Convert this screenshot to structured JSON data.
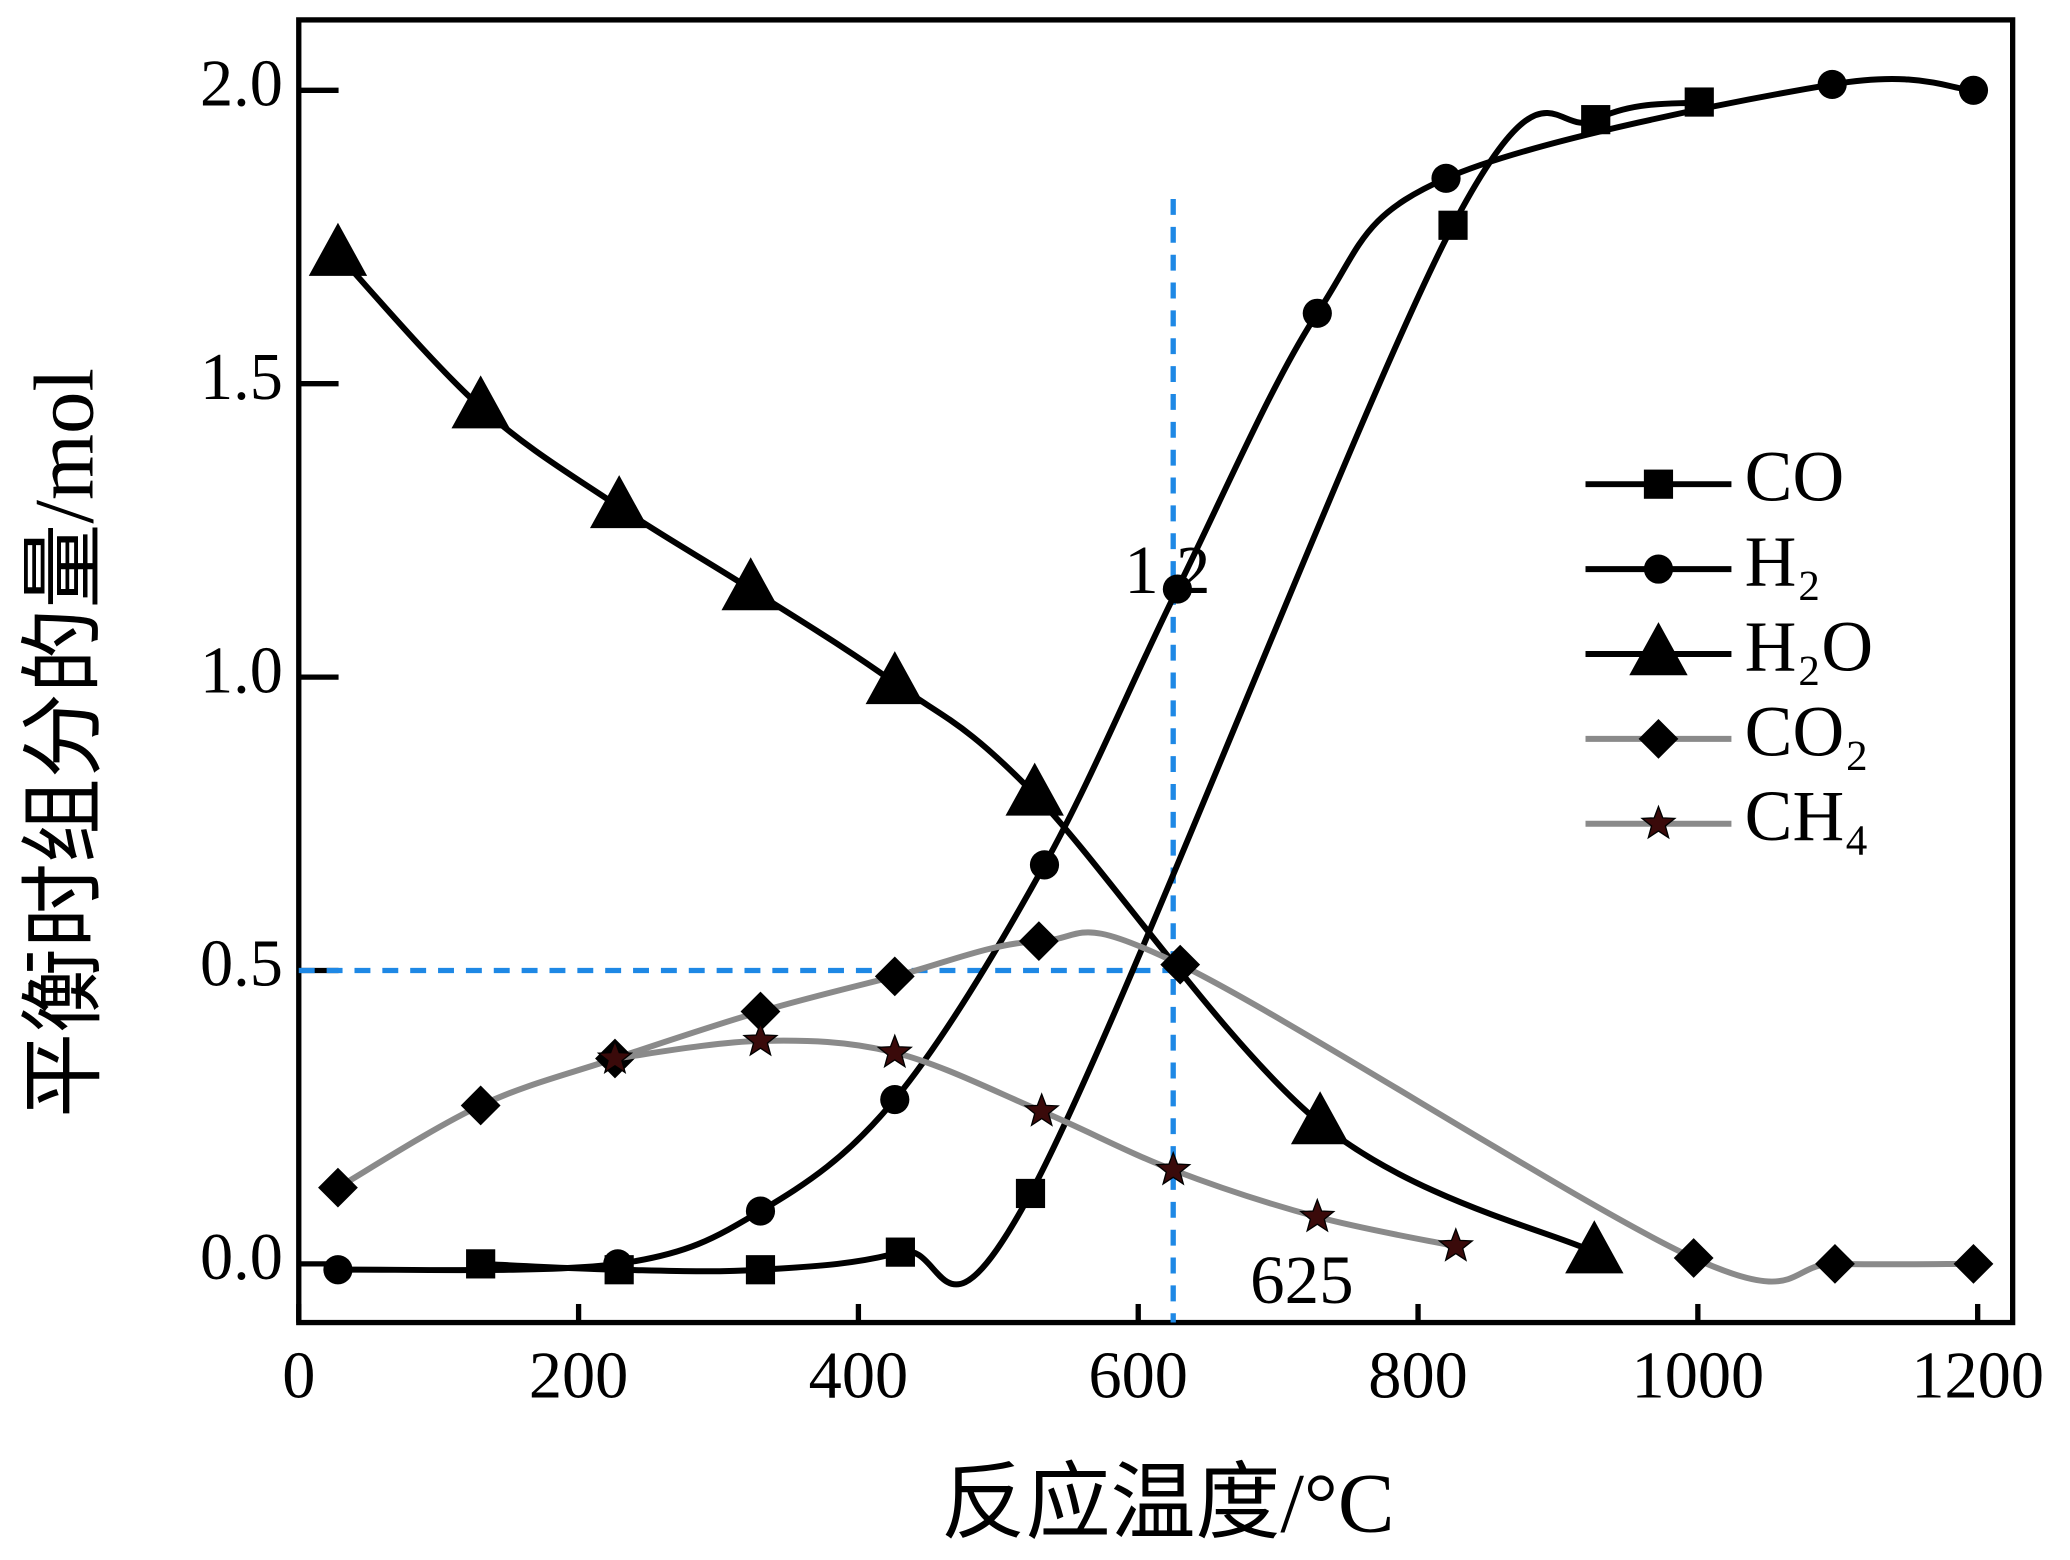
{
  "chart_data": {
    "type": "line",
    "x_label": "反应温度/°C",
    "y_label": "平衡时组分的量/mol",
    "xlim": [
      0,
      1225
    ],
    "ylim": [
      -0.1,
      2.12
    ],
    "xticks": [
      0,
      200,
      400,
      600,
      800,
      1000,
      1200
    ],
    "yticks": [
      {
        "value": 0,
        "label": "0.0"
      },
      {
        "value": 0.5,
        "label": "0.5"
      },
      {
        "value": 1,
        "label": "1.0"
      },
      {
        "value": 1.5,
        "label": "1.5"
      },
      {
        "value": 2,
        "label": "2.0"
      }
    ],
    "legend": "right",
    "series": [
      {
        "name": "CO",
        "color": "#000000",
        "marker": "square",
        "marker_color": "#000000",
        "x": [
          130,
          229,
          330,
          430,
          523,
          825,
          927,
          1001
        ],
        "values": [
          0.0,
          -0.01,
          -0.01,
          0.02,
          0.12,
          1.77,
          1.95,
          1.98
        ]
      },
      {
        "name": "H₂",
        "color": "#000000",
        "marker": "circle",
        "marker_color": "#000000",
        "x": [
          28,
          228,
          330,
          426,
          533,
          628,
          728,
          820,
          1096,
          1197
        ],
        "values": [
          -0.01,
          0.0,
          0.09,
          0.28,
          0.68,
          1.15,
          1.62,
          1.85,
          2.01,
          2.0
        ]
      },
      {
        "name": "H₂O",
        "color": "#000000",
        "marker": "triangle",
        "marker_color": "#000000",
        "x": [
          28,
          130,
          229,
          323,
          426,
          526,
          730,
          926
        ],
        "values": [
          1.72,
          1.46,
          1.29,
          1.15,
          0.99,
          0.8,
          0.24,
          0.02
        ]
      },
      {
        "name": "CO₂",
        "color": "#8a8a8a",
        "marker": "diamond",
        "marker_color": "#000000",
        "x": [
          28,
          130,
          226,
          330,
          426,
          529,
          630,
          997,
          1098,
          1197
        ],
        "values": [
          0.13,
          0.27,
          0.35,
          0.43,
          0.49,
          0.55,
          0.51,
          0.01,
          0.0,
          0.0
        ]
      },
      {
        "name": "CH₄",
        "color": "#8a8a8a",
        "marker": "star",
        "marker_color": "#3a0a0a",
        "x": [
          226,
          330,
          426,
          531,
          625,
          728,
          827
        ],
        "values": [
          0.35,
          0.38,
          0.36,
          0.26,
          0.16,
          0.08,
          0.03
        ]
      }
    ],
    "guide_color": "#1e88e5",
    "guide_x": 625,
    "guide_y": 0.5,
    "annotations": [
      {
        "text": "1.2",
        "x": 590,
        "y": 1.17
      },
      {
        "text": "625",
        "x": 680,
        "y": -0.04
      }
    ]
  }
}
